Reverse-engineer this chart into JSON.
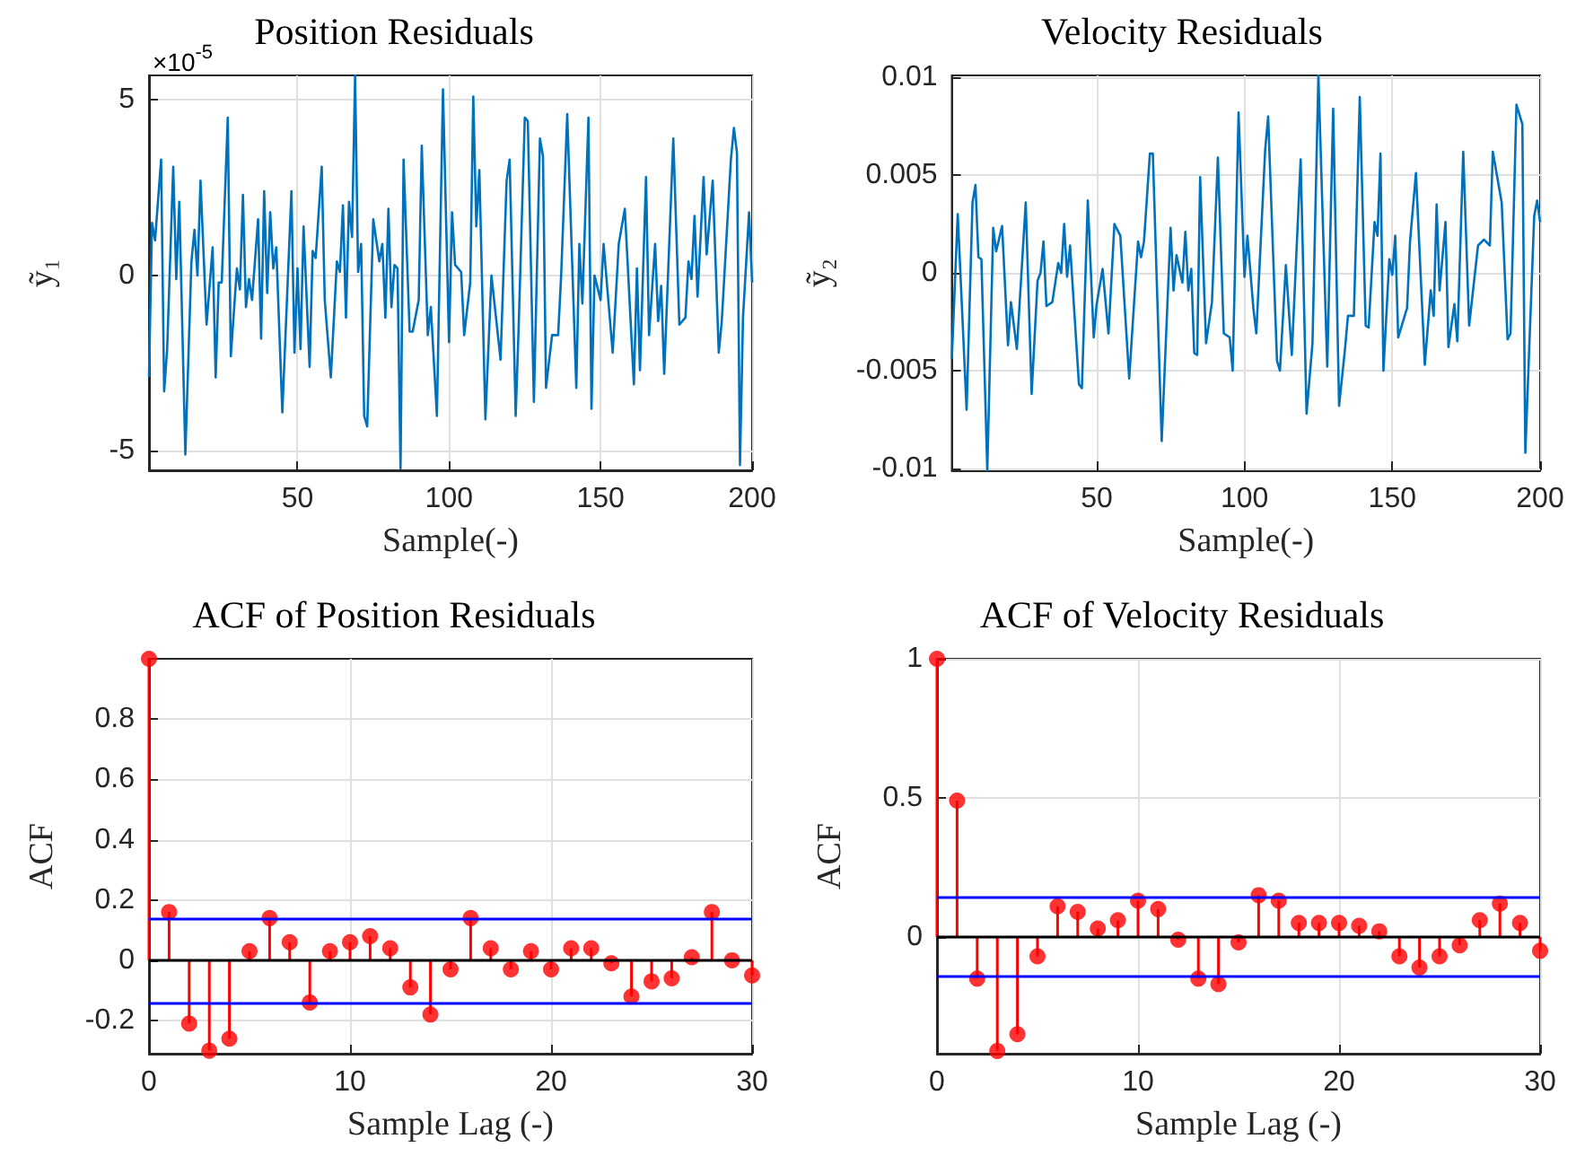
{
  "chart_data": [
    {
      "type": "line",
      "title": "Position Residuals",
      "xlabel": "Sample(-)",
      "ylabel": "ỹ₁",
      "annotations": [
        "×10$^{-5}$"
      ],
      "color": "#0072bd",
      "marker": "none",
      "line_style": "solid",
      "grid": true,
      "xlim": [
        1,
        200
      ],
      "xticks": [
        50,
        100,
        150,
        200
      ],
      "ylim": [
        -5.55,
        5.7
      ],
      "yticks": [
        -5,
        0,
        5
      ],
      "x": [
        1,
        2,
        3,
        5,
        6,
        7,
        9,
        10,
        11,
        13,
        15,
        16,
        17,
        18,
        20,
        22,
        23,
        24,
        25,
        27,
        28,
        30,
        31,
        32,
        33,
        34,
        35,
        37,
        38,
        39,
        40,
        41,
        42,
        43,
        45,
        48,
        49,
        50,
        51,
        52,
        54,
        55,
        56,
        58,
        59,
        61,
        63,
        64,
        65,
        66,
        67,
        68,
        69,
        70,
        71,
        72,
        73,
        75,
        77,
        78,
        79,
        80,
        81,
        82,
        83,
        84,
        85,
        87,
        88,
        90,
        91,
        93,
        94,
        96,
        98,
        100,
        101,
        102,
        104,
        105,
        107,
        108,
        109,
        110,
        112,
        114,
        117,
        119,
        120,
        122,
        123,
        125,
        126,
        128,
        130,
        131,
        132,
        134,
        136,
        137,
        139,
        142,
        143,
        144,
        146,
        147,
        148,
        150,
        151,
        154,
        156,
        158,
        161,
        162,
        163,
        165,
        166,
        168,
        169,
        170,
        171,
        174,
        176,
        178,
        179,
        180,
        181,
        182,
        184,
        185,
        187,
        189,
        190,
        193,
        194,
        195,
        196,
        197,
        199,
        200
      ],
      "values": [
        -2.9,
        1.5,
        1.0,
        3.3,
        -3.3,
        -2.1,
        3.1,
        -0.1,
        2.1,
        -5.1,
        0.4,
        1.3,
        0,
        2.7,
        -1.4,
        0.8,
        -2.9,
        -0.2,
        -0.2,
        4.5,
        -2.3,
        0.2,
        -0.4,
        2.3,
        -0.9,
        -0.1,
        -0.7,
        1.6,
        -1.8,
        2.4,
        -0.5,
        1.8,
        0.2,
        0.8,
        -3.9,
        2.4,
        -2.2,
        0.2,
        -2.1,
        1.4,
        -2.6,
        0.7,
        0.5,
        3.1,
        -0.7,
        -2.9,
        0.4,
        0.1,
        2.0,
        -1.2,
        2.1,
        1.1,
        5.7,
        0.1,
        0.9,
        -4.0,
        -4.3,
        1.6,
        0.4,
        0.9,
        -1.2,
        1.9,
        -0.9,
        0.3,
        0.2,
        -5.5,
        3.3,
        -1.6,
        -1.6,
        -0.7,
        3.7,
        -1.7,
        -0.9,
        -4.0,
        5.3,
        -1.9,
        1.8,
        0.3,
        0.1,
        -1.7,
        -0.2,
        5.1,
        1.4,
        3.0,
        -4.1,
        0,
        -2.4,
        2.7,
        3.3,
        -4.0,
        -1.4,
        4.5,
        4.4,
        -3.6,
        3.9,
        3.4,
        -3.2,
        -1.7,
        -1.7,
        0,
        4.6,
        -3.2,
        0.9,
        -0.8,
        4.5,
        -3.8,
        0,
        -0.7,
        0.9,
        -2.2,
        0.9,
        1.9,
        -3.1,
        0.2,
        -2.7,
        2.8,
        -1.7,
        0.9,
        -1.3,
        -0.3,
        -2.8,
        3.9,
        -1.4,
        -1.2,
        0.4,
        -0.1,
        1.7,
        -0.6,
        2.8,
        0.6,
        2.7,
        -2.2,
        -1.3,
        3.3,
        4.2,
        3.5,
        -5.4,
        -1.2,
        1.8,
        -0.2
      ]
    },
    {
      "type": "line",
      "title": "Velocity Residuals",
      "xlabel": "Sample(-)",
      "ylabel": "ỹ₂",
      "color": "#0072bd",
      "marker": "none",
      "line_style": "solid",
      "grid": true,
      "xlim": [
        1,
        200
      ],
      "xticks": [
        50,
        100,
        150,
        200
      ],
      "ylim": [
        -0.0101,
        0.0101
      ],
      "yticks": [
        -0.01,
        -0.005,
        0,
        0.005,
        0.01
      ],
      "x": [
        1,
        3,
        6,
        8,
        9,
        10,
        11,
        13,
        15,
        16,
        18,
        20,
        21,
        23,
        26,
        28,
        30,
        31,
        32,
        33,
        35,
        37,
        38,
        39,
        40,
        41,
        44,
        45,
        47,
        49,
        50,
        52,
        54,
        56,
        58,
        61,
        64,
        65,
        66,
        68,
        69,
        72,
        75,
        76,
        77,
        79,
        80,
        81,
        82,
        83,
        84,
        85,
        87,
        89,
        91,
        93,
        95,
        96,
        98,
        100,
        101,
        103,
        104,
        107,
        108,
        111,
        112,
        114,
        116,
        119,
        121,
        123,
        125,
        128,
        130,
        132,
        134,
        135,
        137,
        139,
        141,
        142,
        144,
        145,
        146,
        147,
        149,
        150,
        151,
        152,
        155,
        156,
        158,
        161,
        163,
        164,
        165,
        166,
        168,
        169,
        171,
        172,
        174,
        176,
        179,
        181,
        183,
        184,
        187,
        189,
        190,
        192,
        194,
        195,
        198,
        199,
        200
      ],
      "values": [
        -0.0044,
        0.003,
        -0.007,
        0.0036,
        0.0045,
        0.0008,
        0.0007,
        -0.0101,
        0.0023,
        0.0011,
        0.0024,
        -0.0037,
        -0.0015,
        -0.0039,
        0.0036,
        -0.0062,
        -0.0004,
        0,
        0.0016,
        -0.0017,
        -0.0015,
        0.0005,
        0,
        0.0025,
        -0.0002,
        0.0014,
        -0.0057,
        -0.0059,
        0.0037,
        -0.0033,
        -0.0016,
        0.0002,
        -0.0031,
        0.0025,
        0.0019,
        -0.0054,
        0.0016,
        0.0008,
        0.0016,
        0.0061,
        0.0061,
        -0.0086,
        0.0023,
        -0.0009,
        0.0009,
        -0.0005,
        0.0021,
        -0.0009,
        0.0002,
        -0.0041,
        -0.0042,
        0.0049,
        -0.0036,
        -0.0015,
        0.0059,
        -0.0031,
        -0.0033,
        -0.005,
        0.0082,
        -0.0002,
        0.0019,
        -0.0018,
        -0.0031,
        0.0063,
        0.008,
        -0.0045,
        -0.005,
        0.0004,
        -0.0042,
        0.0058,
        -0.0072,
        -0.0036,
        0.0101,
        -0.0048,
        0.0084,
        -0.0068,
        -0.0039,
        -0.0022,
        -0.0022,
        0.009,
        -0.0027,
        -0.0028,
        0.0026,
        0.0019,
        0.0061,
        -0.005,
        0.0007,
        -0.0001,
        0.0019,
        -0.0033,
        -0.0018,
        0.0016,
        0.0051,
        -0.0047,
        -0.0009,
        -0.0022,
        0.0035,
        -0.0009,
        0.0026,
        -0.0038,
        -0.0016,
        -0.0035,
        0.0062,
        -0.0027,
        0.0014,
        0.0017,
        0.0014,
        0.0062,
        0.0036,
        -0.0034,
        -0.0031,
        0.0086,
        0.0076,
        -0.0092,
        0.0029,
        0.0037,
        0.0026
      ]
    },
    {
      "type": "lollipop",
      "title": "ACF of Position Residuals",
      "xlabel": "Sample Lag (-)",
      "ylabel": "ACF",
      "color": "#ff0000",
      "marker": "circle",
      "grid": true,
      "xlim": [
        0,
        30
      ],
      "xticks": [
        0,
        10,
        20,
        30
      ],
      "ylim": [
        -0.31,
        1
      ],
      "yticks": [
        -0.2,
        0,
        0.2,
        0.4,
        0.6,
        0.8
      ],
      "x": [
        0,
        1,
        2,
        3,
        4,
        5,
        6,
        7,
        8,
        9,
        10,
        11,
        12,
        13,
        14,
        15,
        16,
        17,
        18,
        19,
        20,
        21,
        22,
        23,
        24,
        25,
        26,
        27,
        28,
        29,
        30
      ],
      "values": [
        1,
        0.16,
        -0.21,
        -0.3,
        -0.26,
        0.03,
        0.14,
        0.06,
        -0.14,
        0.03,
        0.06,
        0.08,
        0.04,
        -0.09,
        -0.18,
        -0.03,
        0.14,
        0.04,
        -0.03,
        0.03,
        -0.03,
        0.04,
        0.04,
        -0.01,
        -0.12,
        -0.07,
        -0.06,
        0.01,
        0.16,
        0,
        -0.05
      ],
      "ref_lines": [
        {
          "axis": "y",
          "value": 0,
          "color": "#000000"
        },
        {
          "axis": "y",
          "value": 0.14,
          "color": "#0000ff"
        },
        {
          "axis": "y",
          "value": -0.14,
          "color": "#0000ff"
        }
      ]
    },
    {
      "type": "lollipop",
      "title": "ACF of Velocity Residuals",
      "xlabel": "Sample Lag (-)",
      "ylabel": "ACF",
      "color": "#ff0000",
      "marker": "circle",
      "grid": true,
      "xlim": [
        0,
        30
      ],
      "xticks": [
        0,
        10,
        20,
        30
      ],
      "ylim": [
        -0.42,
        1
      ],
      "yticks": [
        0,
        0.5,
        1
      ],
      "x": [
        0,
        1,
        2,
        3,
        4,
        5,
        6,
        7,
        8,
        9,
        10,
        11,
        12,
        13,
        14,
        15,
        16,
        17,
        18,
        19,
        20,
        21,
        22,
        23,
        24,
        25,
        26,
        27,
        28,
        29,
        30
      ],
      "values": [
        1,
        0.49,
        -0.15,
        -0.41,
        -0.35,
        -0.07,
        0.11,
        0.09,
        0.03,
        0.06,
        0.13,
        0.1,
        -0.01,
        -0.15,
        -0.17,
        -0.02,
        0.15,
        0.13,
        0.05,
        0.05,
        0.05,
        0.04,
        0.02,
        -0.07,
        -0.11,
        -0.07,
        -0.03,
        0.06,
        0.12,
        0.05,
        -0.05
      ],
      "ref_lines": [
        {
          "axis": "y",
          "value": 0,
          "color": "#000000"
        },
        {
          "axis": "y",
          "value": 0.14,
          "color": "#0000ff"
        },
        {
          "axis": "y",
          "value": -0.14,
          "color": "#0000ff"
        }
      ]
    }
  ]
}
